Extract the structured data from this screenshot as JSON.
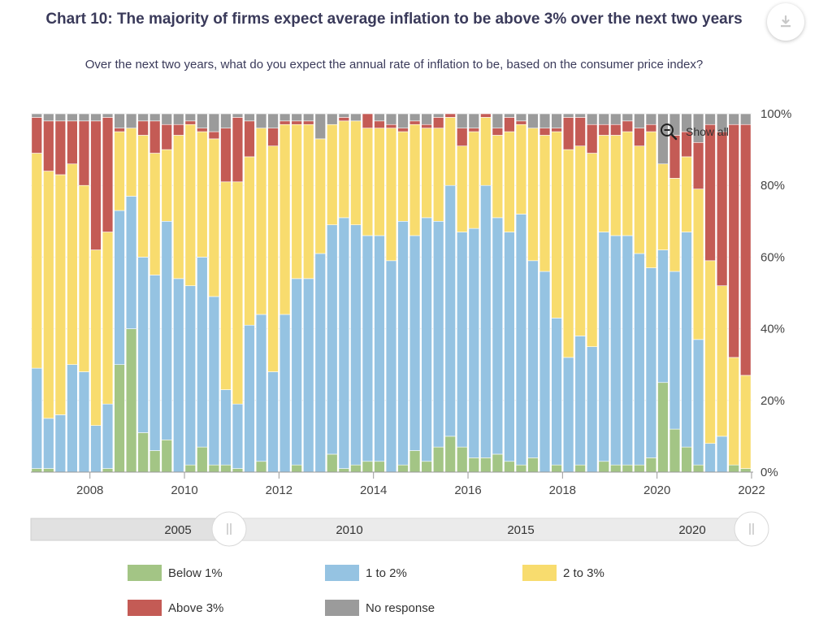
{
  "header": {
    "title": "Chart 10: The majority of firms expect average inflation to be above 3% over the next two years",
    "subtitle": "Over the next two years, what do you expect the annual rate of inflation to be, based on the consumer price index?"
  },
  "controls": {
    "show_all_label": "Show all",
    "download_icon": "download-icon",
    "zoom_icon": "zoom-out-icon"
  },
  "navigator": {
    "labels": [
      "2005",
      "2010",
      "2015",
      "2020"
    ]
  },
  "colors": {
    "below1": "#a3c585",
    "one_to_two": "#95c3e2",
    "two_to_three": "#f8dc6e",
    "above3": "#c45b55",
    "no_response": "#9b9b9b"
  },
  "chart_data": {
    "type": "bar",
    "stacked": true,
    "ylim": [
      0,
      100
    ],
    "y_ticks": [
      "0%",
      "20%",
      "40%",
      "60%",
      "80%",
      "100%"
    ],
    "x_ticks": [
      "2008",
      "2010",
      "2012",
      "2014",
      "2016",
      "2018",
      "2020",
      "2022"
    ],
    "x_range": [
      2006.75,
      2022.0
    ],
    "bar_width_years": 0.22,
    "legend_position": "bottom",
    "series": [
      {
        "name": "Below 1%",
        "key": "below1"
      },
      {
        "name": "1 to 2%",
        "key": "one_to_two"
      },
      {
        "name": "2 to 3%",
        "key": "two_to_three"
      },
      {
        "name": "Above 3%",
        "key": "above3"
      },
      {
        "name": "No response",
        "key": "no_response"
      }
    ],
    "bars": [
      {
        "x": 2006.875,
        "v": [
          1,
          28,
          60,
          10,
          1
        ]
      },
      {
        "x": 2007.125,
        "v": [
          1,
          14,
          69,
          14,
          2
        ]
      },
      {
        "x": 2007.375,
        "v": [
          0,
          16,
          67,
          15,
          2
        ]
      },
      {
        "x": 2007.625,
        "v": [
          0,
          30,
          56,
          12,
          2
        ]
      },
      {
        "x": 2007.875,
        "v": [
          0,
          28,
          52,
          18,
          2
        ]
      },
      {
        "x": 2008.125,
        "v": [
          0,
          13,
          49,
          36,
          2
        ]
      },
      {
        "x": 2008.375,
        "v": [
          1,
          18,
          48,
          32,
          1
        ]
      },
      {
        "x": 2008.625,
        "v": [
          30,
          43,
          22,
          1,
          4
        ]
      },
      {
        "x": 2008.875,
        "v": [
          40,
          37,
          19,
          0,
          4
        ]
      },
      {
        "x": 2009.125,
        "v": [
          11,
          49,
          34,
          4,
          2
        ]
      },
      {
        "x": 2009.375,
        "v": [
          6,
          49,
          34,
          9,
          2
        ]
      },
      {
        "x": 2009.625,
        "v": [
          9,
          61,
          20,
          7,
          3
        ]
      },
      {
        "x": 2009.875,
        "v": [
          0,
          54,
          40,
          3,
          3
        ]
      },
      {
        "x": 2010.125,
        "v": [
          2,
          50,
          45,
          1,
          2
        ]
      },
      {
        "x": 2010.375,
        "v": [
          7,
          53,
          35,
          1,
          4
        ]
      },
      {
        "x": 2010.625,
        "v": [
          2,
          47,
          44,
          2,
          5
        ]
      },
      {
        "x": 2010.875,
        "v": [
          2,
          21,
          58,
          15,
          4
        ]
      },
      {
        "x": 2011.125,
        "v": [
          1,
          18,
          62,
          18,
          1
        ]
      },
      {
        "x": 2011.375,
        "v": [
          0,
          41,
          47,
          10,
          2
        ]
      },
      {
        "x": 2011.625,
        "v": [
          3,
          41,
          52,
          0,
          4
        ]
      },
      {
        "x": 2011.875,
        "v": [
          0,
          28,
          63,
          5,
          4
        ]
      },
      {
        "x": 2012.125,
        "v": [
          0,
          44,
          53,
          1,
          2
        ]
      },
      {
        "x": 2012.375,
        "v": [
          2,
          52,
          43,
          1,
          2
        ]
      },
      {
        "x": 2012.625,
        "v": [
          0,
          54,
          43,
          1,
          2
        ]
      },
      {
        "x": 2012.875,
        "v": [
          0,
          61,
          32,
          0,
          7
        ]
      },
      {
        "x": 2013.125,
        "v": [
          5,
          64,
          28,
          0,
          3
        ]
      },
      {
        "x": 2013.375,
        "v": [
          1,
          70,
          27,
          1,
          1
        ]
      },
      {
        "x": 2013.625,
        "v": [
          2,
          67,
          29,
          0,
          2
        ]
      },
      {
        "x": 2013.875,
        "v": [
          3,
          63,
          30,
          4,
          0
        ]
      },
      {
        "x": 2014.125,
        "v": [
          3,
          63,
          30,
          2,
          2
        ]
      },
      {
        "x": 2014.375,
        "v": [
          0,
          59,
          37,
          1,
          3
        ]
      },
      {
        "x": 2014.625,
        "v": [
          2,
          68,
          25,
          1,
          4
        ]
      },
      {
        "x": 2014.875,
        "v": [
          6,
          60,
          31,
          1,
          2
        ]
      },
      {
        "x": 2015.125,
        "v": [
          3,
          68,
          25,
          1,
          3
        ]
      },
      {
        "x": 2015.375,
        "v": [
          7,
          63,
          26,
          3,
          1
        ]
      },
      {
        "x": 2015.625,
        "v": [
          10,
          70,
          19,
          1,
          0
        ]
      },
      {
        "x": 2015.875,
        "v": [
          7,
          60,
          24,
          5,
          4
        ]
      },
      {
        "x": 2016.125,
        "v": [
          4,
          64,
          27,
          1,
          4
        ]
      },
      {
        "x": 2016.375,
        "v": [
          4,
          76,
          19,
          1,
          0
        ]
      },
      {
        "x": 2016.625,
        "v": [
          5,
          66,
          23,
          2,
          4
        ]
      },
      {
        "x": 2016.875,
        "v": [
          3,
          64,
          28,
          4,
          1
        ]
      },
      {
        "x": 2017.125,
        "v": [
          2,
          70,
          25,
          1,
          2
        ]
      },
      {
        "x": 2017.375,
        "v": [
          4,
          55,
          37,
          0,
          4
        ]
      },
      {
        "x": 2017.625,
        "v": [
          0,
          56,
          38,
          2,
          4
        ]
      },
      {
        "x": 2017.875,
        "v": [
          2,
          41,
          52,
          1,
          4
        ]
      },
      {
        "x": 2018.125,
        "v": [
          0,
          32,
          58,
          9,
          1
        ]
      },
      {
        "x": 2018.375,
        "v": [
          2,
          36,
          53,
          8,
          1
        ]
      },
      {
        "x": 2018.625,
        "v": [
          0,
          35,
          54,
          8,
          3
        ]
      },
      {
        "x": 2018.875,
        "v": [
          3,
          64,
          27,
          3,
          3
        ]
      },
      {
        "x": 2019.125,
        "v": [
          2,
          64,
          28,
          3,
          3
        ]
      },
      {
        "x": 2019.375,
        "v": [
          2,
          64,
          29,
          3,
          2
        ]
      },
      {
        "x": 2019.625,
        "v": [
          2,
          59,
          30,
          5,
          4
        ]
      },
      {
        "x": 2019.875,
        "v": [
          4,
          53,
          38,
          2,
          3
        ]
      },
      {
        "x": 2020.125,
        "v": [
          25,
          37,
          24,
          0,
          14
        ]
      },
      {
        "x": 2020.375,
        "v": [
          12,
          44,
          26,
          12,
          6
        ]
      },
      {
        "x": 2020.625,
        "v": [
          7,
          60,
          21,
          7,
          5
        ]
      },
      {
        "x": 2020.875,
        "v": [
          2,
          35,
          42,
          13,
          8
        ]
      },
      {
        "x": 2021.125,
        "v": [
          0,
          8,
          51,
          38,
          3
        ]
      },
      {
        "x": 2021.375,
        "v": [
          0,
          10,
          42,
          43,
          5
        ]
      },
      {
        "x": 2021.625,
        "v": [
          2,
          0,
          30,
          65,
          3
        ]
      },
      {
        "x": 2021.875,
        "v": [
          1,
          0,
          26,
          70,
          3
        ]
      }
    ]
  }
}
